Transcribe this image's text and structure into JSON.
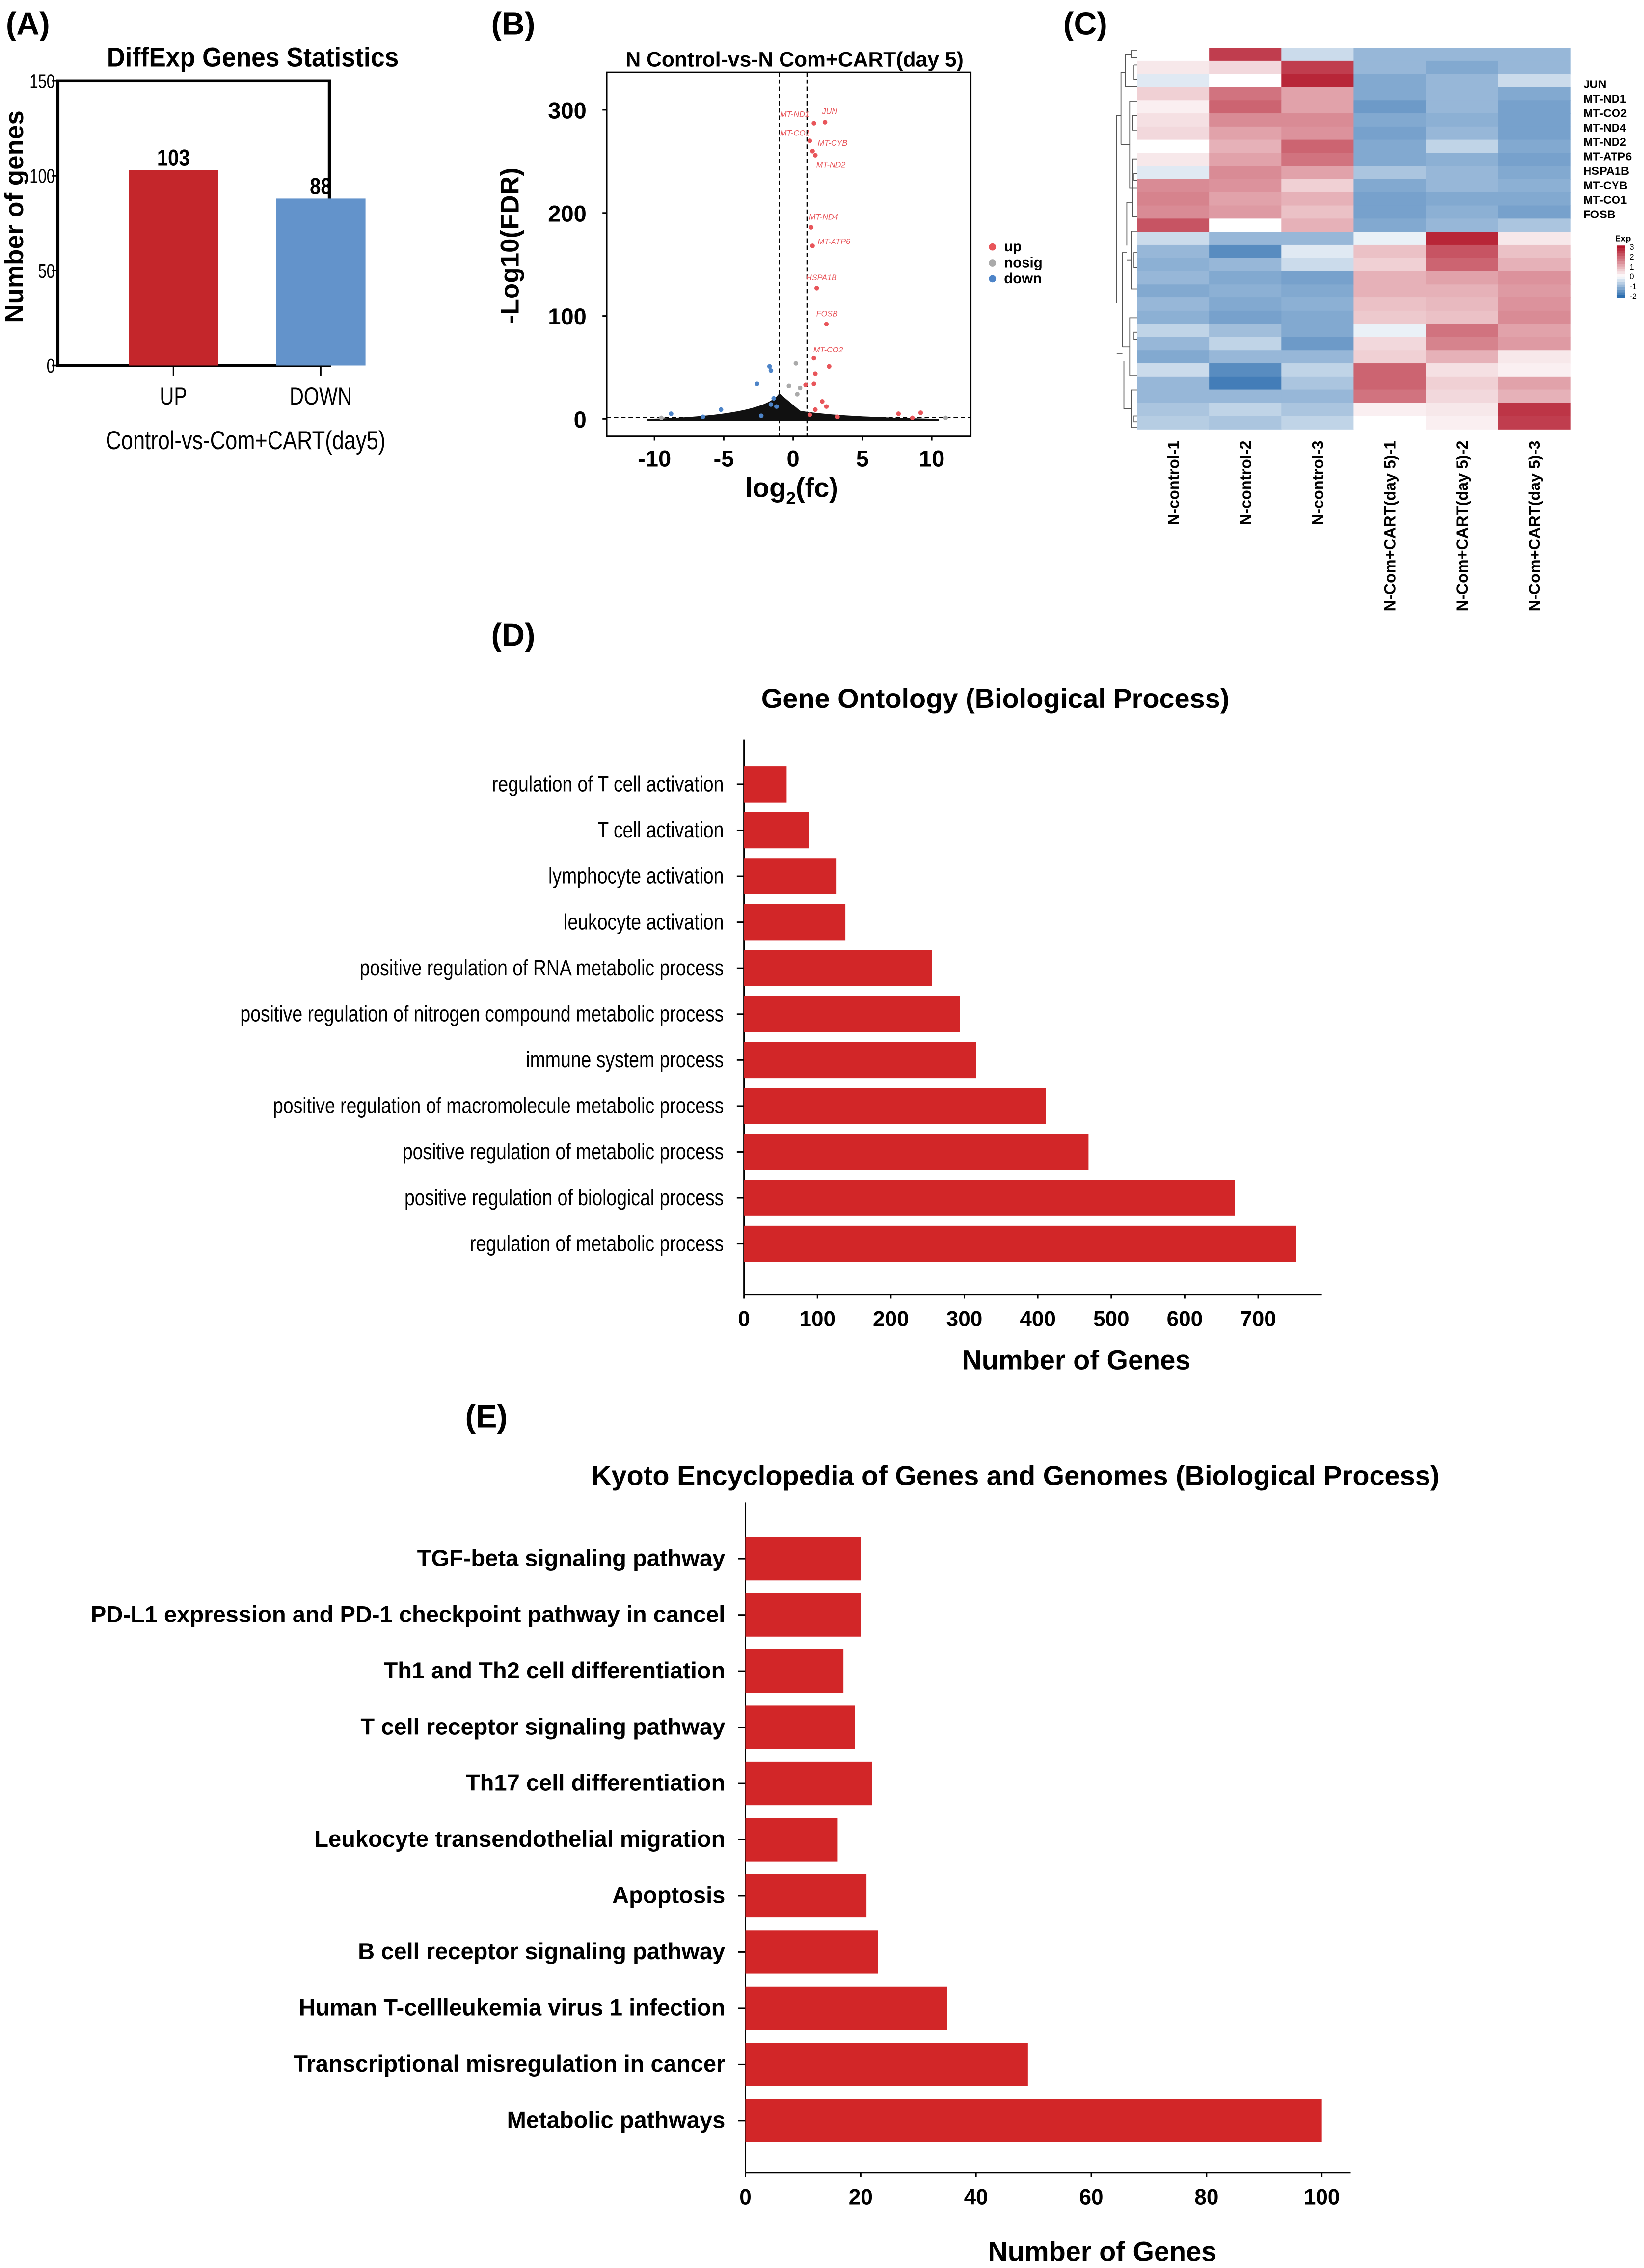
{
  "panel_labels": {
    "a": "(A)",
    "b": "(B)",
    "c": "(C)",
    "d": "(D)",
    "e": "(E)"
  },
  "colors": {
    "up": "#c4262b",
    "down": "#6393cb",
    "nosig": "#bbbbbb",
    "bar": "#d22628",
    "heat_low": "#2e6fb0",
    "heat_mid": "#ffffff",
    "heat_high": "#b3162a"
  },
  "chart_data": [
    {
      "type": "bar",
      "title": "DiffExp Genes Statistics",
      "xlabel": "Control-vs-Com+CART(day5)",
      "ylabel": "Number of genes",
      "categories": [
        "UP",
        "DOWN"
      ],
      "values": [
        103,
        88
      ],
      "data_labels": [
        "103",
        "88"
      ],
      "bar_colors": [
        "#c4262b",
        "#6393cb"
      ],
      "ylim": [
        0,
        150
      ],
      "yticks": [
        0,
        50,
        100,
        150
      ]
    },
    {
      "type": "scatter",
      "title": "N Control-vs-N Com+CART(day 5)",
      "xlabel": "log2(fc)",
      "ylabel": "-Log10(FDR)",
      "xlim": [
        -13,
        13
      ],
      "ylim": [
        -15,
        330
      ],
      "xticks": [
        -10,
        -5,
        0,
        5,
        10
      ],
      "yticks": [
        0,
        100,
        200,
        300
      ],
      "fc_threshold": [
        -1,
        1
      ],
      "fdr_line": 1.3,
      "legend": [
        "up",
        "nosig",
        "down"
      ],
      "legend_position": "right",
      "labeled_points": [
        {
          "gene": "JUN",
          "x": 2.3,
          "y": 288
        },
        {
          "gene": "MT-ND1",
          "x": 1.5,
          "y": 287
        },
        {
          "gene": "MT-CO1",
          "x": 1.2,
          "y": 270
        },
        {
          "gene": "MT-CYB",
          "x": 1.4,
          "y": 260
        },
        {
          "gene": "MT-ND2",
          "x": 1.6,
          "y": 256
        },
        {
          "gene": "MT-ND4",
          "x": 1.3,
          "y": 186
        },
        {
          "gene": "MT-ATP6",
          "x": 1.4,
          "y": 168
        },
        {
          "gene": "HSPA1B",
          "x": 1.7,
          "y": 127
        },
        {
          "gene": "FOSB",
          "x": 2.4,
          "y": 92
        },
        {
          "gene": "MT-CO2",
          "x": 1.5,
          "y": 59
        }
      ],
      "points": [
        {
          "group": "up",
          "x": 2.6,
          "y": 51
        },
        {
          "group": "up",
          "x": 1.6,
          "y": 44
        },
        {
          "group": "up",
          "x": 1.5,
          "y": 34
        },
        {
          "group": "up",
          "x": 0.9,
          "y": 33
        },
        {
          "group": "up",
          "x": 2.4,
          "y": 12
        },
        {
          "group": "up",
          "x": 2.1,
          "y": 17
        },
        {
          "group": "up",
          "x": 1.6,
          "y": 9
        },
        {
          "group": "up",
          "x": 7.6,
          "y": 5
        },
        {
          "group": "up",
          "x": 9.2,
          "y": 6
        },
        {
          "group": "up",
          "x": 8.6,
          "y": 1
        },
        {
          "group": "up",
          "x": 3.2,
          "y": 2
        },
        {
          "group": "up",
          "x": 1.2,
          "y": 4
        },
        {
          "group": "down",
          "x": -1.7,
          "y": 51
        },
        {
          "group": "down",
          "x": -1.6,
          "y": 47
        },
        {
          "group": "down",
          "x": -2.6,
          "y": 34
        },
        {
          "group": "down",
          "x": -5.2,
          "y": 9
        },
        {
          "group": "down",
          "x": -8.8,
          "y": 5
        },
        {
          "group": "down",
          "x": -1.4,
          "y": 20
        },
        {
          "group": "down",
          "x": -1.6,
          "y": 14
        },
        {
          "group": "down",
          "x": -1.2,
          "y": 12
        },
        {
          "group": "down",
          "x": -6.5,
          "y": 2
        },
        {
          "group": "down",
          "x": -2.3,
          "y": 3
        },
        {
          "group": "nosig",
          "x": 0.2,
          "y": 54
        },
        {
          "group": "nosig",
          "x": 0.5,
          "y": 30
        },
        {
          "group": "nosig",
          "x": 0.3,
          "y": 24
        },
        {
          "group": "nosig",
          "x": -0.3,
          "y": 32
        },
        {
          "group": "nosig",
          "x": -9.5,
          "y": 1
        },
        {
          "group": "nosig",
          "x": 11,
          "y": 1
        }
      ]
    },
    {
      "type": "heatmap",
      "columns": [
        "N-control-1",
        "N-control-2",
        "N-control-3",
        "N-Com+CART(day 5)-1",
        "N-Com+CART(day 5)-2",
        "N-Com+CART(day 5)-3"
      ],
      "row_labels": [
        "JUN",
        "MT-ND1",
        "MT-CO2",
        "MT-ND4",
        "MT-ND2",
        "MT-ATP6",
        "HSPA1B",
        "MT-CYB",
        "MT-CO1",
        "FOSB"
      ],
      "legend_title": "Exp",
      "legend_ticks": [
        "3",
        "2",
        "1",
        "0",
        "-1",
        "-2"
      ],
      "range": [
        -2,
        3
      ],
      "values": [
        [
          0,
          2.5,
          -0.5,
          -1,
          -1,
          -1
        ],
        [
          0.3,
          0.5,
          2.5,
          -1,
          -1.2,
          -1
        ],
        [
          -0.3,
          0,
          2.8,
          -1.2,
          -1,
          -0.5
        ],
        [
          0.6,
          1.8,
          1.2,
          -1.2,
          -1,
          -1.2
        ],
        [
          0.2,
          2,
          1.2,
          -1.4,
          -1,
          -1.3
        ],
        [
          0.4,
          1.5,
          1.5,
          -1.2,
          -1.1,
          -1.3
        ],
        [
          0.5,
          1.2,
          1.4,
          -1.3,
          -1,
          -1.3
        ],
        [
          0,
          1,
          2,
          -1.2,
          -0.6,
          -1.2
        ],
        [
          0.3,
          1.2,
          1.8,
          -1.2,
          -1.1,
          -1.3
        ],
        [
          -0.3,
          1.5,
          1.2,
          -0.8,
          -1,
          -1.2
        ],
        [
          1.5,
          1.4,
          0.6,
          -1.2,
          -1,
          -1.1
        ],
        [
          1.6,
          1.2,
          1,
          -1.3,
          -1.2,
          -1.2
        ],
        [
          1.5,
          1.3,
          0.8,
          -1.3,
          -1.1,
          -1.3
        ],
        [
          2.2,
          0,
          1,
          -1.2,
          -1,
          -0.8
        ],
        [
          -0.5,
          -1,
          -1,
          -0.2,
          2.8,
          0.3
        ],
        [
          -1,
          -1.6,
          -0.3,
          0.8,
          2.2,
          0.8
        ],
        [
          -1.1,
          -1,
          -0.5,
          0.6,
          2,
          1
        ],
        [
          -1,
          -1.2,
          -1.3,
          1,
          1.2,
          1.4
        ],
        [
          -1.2,
          -1.1,
          -1.2,
          1,
          1,
          1.3
        ],
        [
          -1,
          -1.2,
          -1.1,
          0.8,
          0.9,
          1.4
        ],
        [
          -1.1,
          -1.3,
          -1.2,
          0.7,
          0.8,
          1.5
        ],
        [
          -0.6,
          -0.9,
          -1.2,
          -0.2,
          1.8,
          1.2
        ],
        [
          -1,
          -0.6,
          -1.4,
          0.5,
          1.6,
          1.3
        ],
        [
          -1.2,
          -1,
          -1,
          0.6,
          1,
          0.3
        ],
        [
          -0.5,
          -1.6,
          -0.6,
          2,
          0.4,
          0.2
        ],
        [
          -1,
          -1.8,
          -0.8,
          2,
          0.6,
          1.2
        ],
        [
          -1,
          -1,
          -1,
          1.8,
          0.5,
          1
        ],
        [
          -0.8,
          -0.6,
          -0.8,
          0.2,
          0.3,
          2.6
        ],
        [
          -0.7,
          -0.8,
          -0.6,
          0,
          0.2,
          2.5
        ]
      ]
    },
    {
      "type": "bar",
      "orientation": "horizontal",
      "title": "Gene Ontology (Biological Process)",
      "xlabel": "Number of  Genes",
      "categories": [
        "regulation of T cell activation",
        "T cell activation",
        "lymphocyte activation",
        "leukocyte activation",
        "positive regulation of RNA metabolic process",
        "positive regulation of nitrogen compound metabolic process",
        "immune system process",
        "positive regulation of macromolecule metabolic process",
        "positive regulation of metabolic process",
        "positive regulation of biological process",
        "regulation of metabolic process"
      ],
      "values": [
        58,
        88,
        126,
        138,
        256,
        294,
        316,
        411,
        469,
        668,
        752
      ],
      "xlim": [
        0,
        790
      ],
      "xticks": [
        0,
        100,
        200,
        300,
        400,
        500,
        600,
        700
      ]
    },
    {
      "type": "bar",
      "orientation": "horizontal",
      "title": "Kyoto Encyclopedia of Genes and Genomes (Biological Process)",
      "xlabel": "Number of  Genes",
      "categories": [
        "TGF-beta signaling pathway",
        "PD-L1 expression and PD-1 checkpoint pathway in cancel",
        "Th1 and Th2 cell differentiation",
        "T cell receptor signaling pathway",
        "Th17 cell differentiation",
        "Leukocyte transendothelial migration",
        "Apoptosis",
        "B cell receptor signaling pathway",
        "Human T-cellleukemia virus 1 infection",
        "Transcriptional misregulation in cancer",
        "Metabolic pathways"
      ],
      "values": [
        20,
        20,
        17,
        19,
        22,
        16,
        21,
        23,
        35,
        49,
        100
      ],
      "xlim": [
        0,
        105
      ],
      "xticks": [
        0,
        20,
        40,
        60,
        80,
        100
      ]
    }
  ]
}
